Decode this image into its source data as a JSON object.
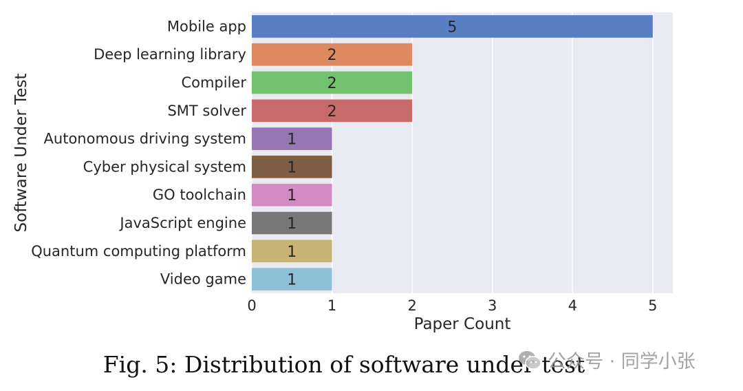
{
  "chart_data": {
    "type": "bar",
    "orientation": "horizontal",
    "categories": [
      "Mobile app",
      "Deep learning library",
      "Compiler",
      "SMT solver",
      "Autonomous driving system",
      "Cyber physical system",
      "GO toolchain",
      "JavaScript engine",
      "Quantum computing platform",
      "Video game"
    ],
    "values": [
      5,
      2,
      2,
      2,
      1,
      1,
      1,
      1,
      1,
      1
    ],
    "colors": [
      "#5a7ec4",
      "#dd8a60",
      "#72c270",
      "#c86a6a",
      "#9677b1",
      "#7f5e46",
      "#d48ac2",
      "#787878",
      "#c8b474",
      "#8cc1d8"
    ],
    "xlabel": "Paper Count",
    "ylabel": "Software Under Test",
    "xlim": [
      0,
      5.25
    ],
    "xticks": [
      0,
      1,
      2,
      3,
      4,
      5
    ],
    "grid": true,
    "background": "#eaeaf2"
  },
  "caption": "Fig. 5: Distribution of software under test",
  "watermark": {
    "text": "公众号 · 同学小张",
    "icon": "wechat-icon"
  }
}
